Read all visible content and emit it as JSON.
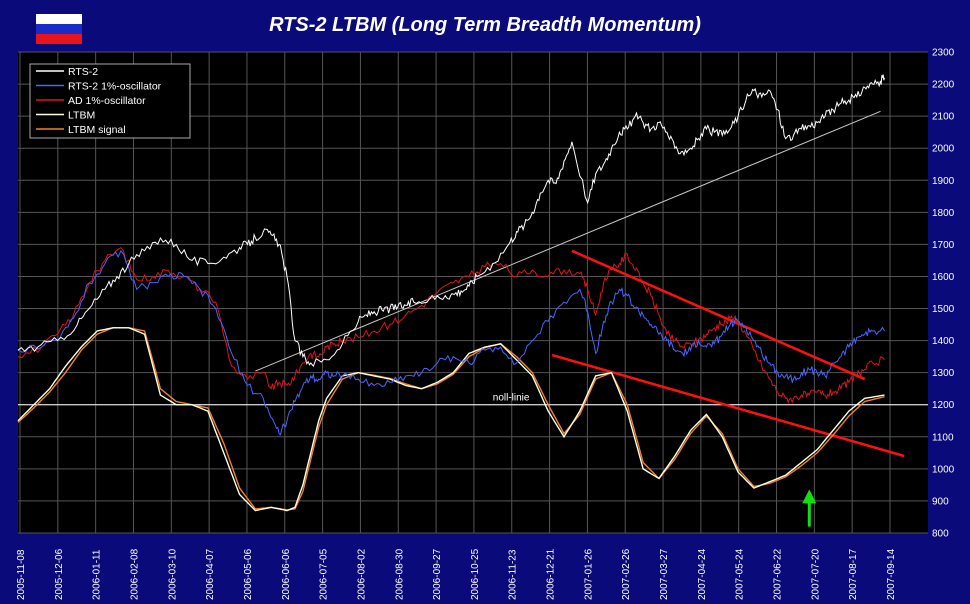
{
  "title": "RTS-2 LTBM (Long Term Breadth Momentum)",
  "flag": {
    "colors": [
      "#ffffff",
      "#1a2cc8",
      "#e8141c"
    ]
  },
  "chart_data": {
    "type": "line",
    "title": "RTS-2 LTBM (Long Term Breadth Momentum)",
    "ylim": [
      800,
      2300
    ],
    "y_ticks": [
      800,
      900,
      1000,
      1100,
      1200,
      1300,
      1400,
      1500,
      1600,
      1700,
      1800,
      1900,
      2000,
      2100,
      2200,
      2300
    ],
    "x_ticks": [
      "2005-11-08",
      "2005-12-06",
      "2006-01-11",
      "2006-02-08",
      "2006-03-10",
      "2006-04-07",
      "2006-05-06",
      "2006-06-06",
      "2006-07-05",
      "2006-08-02",
      "2006-08-30",
      "2006-09-27",
      "2006-10-25",
      "2006-11-23",
      "2006-12-21",
      "2007-01-26",
      "2007-02-26",
      "2007-03-27",
      "2007-04-24",
      "2007-05-24",
      "2007-06-22",
      "2007-07-20",
      "2007-08-17",
      "2007-09-14"
    ],
    "grid": true,
    "legend_position": "top-left",
    "colors": {
      "background": "#000000",
      "frame": "#0a0a7a",
      "grid": "#555555",
      "rts2": "#ffffff",
      "rts2_osc": "#4a64ff",
      "ad_osc": "#e0141c",
      "ltbm": "#ffffe0",
      "ltbm_signal": "#f08030",
      "trend_red": "#ff1010",
      "trend_grey": "#c8c8c8",
      "zero_line": "#ffffff",
      "arrow": "#10e010"
    },
    "series": [
      {
        "name": "RTS-2",
        "color": "#ffffff",
        "x": [
          0,
          5,
          10,
          15,
          18,
          22,
          25,
          28,
          32,
          36,
          40,
          44,
          48,
          52,
          56,
          58,
          60,
          62,
          64,
          66,
          68,
          70,
          72,
          74,
          78,
          82,
          86,
          88,
          90,
          92,
          94,
          96,
          98,
          100,
          104,
          108,
          110,
          112,
          114,
          116,
          120,
          124,
          126,
          128,
          130,
          132,
          134,
          136,
          138,
          140,
          144,
          146,
          148,
          150,
          152,
          154,
          156,
          158,
          160,
          162,
          164,
          166,
          168,
          170,
          172,
          174,
          176,
          178,
          180,
          182,
          184,
          186,
          188,
          190,
          192,
          194,
          196,
          198,
          200,
          202,
          204,
          206,
          208,
          210,
          212,
          214,
          216,
          218,
          219
        ],
        "y": [
          1370,
          1380,
          1400,
          1450,
          1500,
          1560,
          1600,
          1640,
          1680,
          1720,
          1700,
          1650,
          1640,
          1660,
          1690,
          1700,
          1720,
          1740,
          1730,
          1700,
          1600,
          1400,
          1350,
          1330,
          1340,
          1390,
          1460,
          1480,
          1490,
          1495,
          1500,
          1505,
          1510,
          1520,
          1530,
          1540,
          1545,
          1555,
          1570,
          1600,
          1640,
          1700,
          1740,
          1760,
          1800,
          1860,
          1900,
          1890,
          1960,
          2020,
          1830,
          1920,
          1950,
          2000,
          2050,
          2060,
          2100,
          2080,
          2060,
          2080,
          2050,
          2000,
          1990,
          2000,
          2030,
          2060,
          2050,
          2040,
          2060,
          2100,
          2150,
          2180,
          2160,
          2180,
          2120,
          2030,
          2040,
          2060,
          2070,
          2080,
          2100,
          2120,
          2140,
          2150,
          2160,
          2190,
          2200,
          2210,
          2220
        ]
      },
      {
        "name": "RTS-2 1%-oscillator",
        "color": "#4a64ff",
        "x": [
          0,
          6,
          10,
          14,
          18,
          22,
          26,
          30,
          34,
          38,
          42,
          46,
          50,
          54,
          58,
          62,
          64,
          66,
          68,
          70,
          72,
          74,
          76,
          78,
          80,
          82,
          86,
          90,
          94,
          98,
          102,
          106,
          110,
          114,
          118,
          122,
          126,
          130,
          134,
          138,
          142,
          144,
          146,
          148,
          150,
          152,
          154,
          156,
          158,
          160,
          162,
          164,
          166,
          168,
          170,
          172,
          174,
          176,
          178,
          180,
          182,
          184,
          186,
          188,
          190,
          192,
          194,
          196,
          198,
          200,
          202,
          204,
          206,
          208,
          210,
          212,
          214,
          216,
          219
        ],
        "y": [
          1370,
          1380,
          1400,
          1470,
          1580,
          1640,
          1680,
          1560,
          1580,
          1600,
          1600,
          1560,
          1500,
          1360,
          1260,
          1220,
          1160,
          1110,
          1150,
          1210,
          1260,
          1290,
          1280,
          1300,
          1290,
          1290,
          1280,
          1260,
          1270,
          1290,
          1300,
          1330,
          1350,
          1330,
          1370,
          1380,
          1330,
          1400,
          1460,
          1520,
          1560,
          1490,
          1360,
          1460,
          1520,
          1560,
          1540,
          1500,
          1480,
          1450,
          1420,
          1400,
          1370,
          1360,
          1370,
          1400,
          1380,
          1390,
          1420,
          1450,
          1460,
          1440,
          1400,
          1360,
          1330,
          1300,
          1290,
          1280,
          1300,
          1310,
          1300,
          1290,
          1330,
          1350,
          1380,
          1410,
          1420,
          1430,
          1430
        ]
      },
      {
        "name": "AD 1%-oscillator",
        "color": "#e0141c",
        "x": [
          0,
          6,
          10,
          14,
          18,
          22,
          26,
          30,
          34,
          38,
          42,
          46,
          50,
          54,
          58,
          62,
          64,
          66,
          68,
          70,
          72,
          74,
          76,
          78,
          80,
          82,
          86,
          90,
          94,
          98,
          102,
          106,
          110,
          114,
          118,
          122,
          126,
          130,
          134,
          138,
          142,
          144,
          146,
          148,
          150,
          152,
          154,
          156,
          158,
          160,
          162,
          164,
          166,
          168,
          170,
          172,
          174,
          176,
          178,
          180,
          182,
          184,
          186,
          188,
          190,
          192,
          194,
          196,
          198,
          200,
          202,
          204,
          206,
          208,
          210,
          212,
          214,
          216,
          219
        ],
        "y": [
          1350,
          1380,
          1420,
          1480,
          1580,
          1650,
          1690,
          1590,
          1600,
          1620,
          1600,
          1560,
          1520,
          1320,
          1280,
          1300,
          1250,
          1270,
          1260,
          1290,
          1330,
          1360,
          1350,
          1380,
          1390,
          1400,
          1410,
          1430,
          1450,
          1480,
          1510,
          1550,
          1580,
          1600,
          1630,
          1640,
          1600,
          1620,
          1600,
          1620,
          1610,
          1560,
          1480,
          1580,
          1620,
          1640,
          1670,
          1620,
          1580,
          1540,
          1480,
          1420,
          1400,
          1380,
          1390,
          1400,
          1420,
          1440,
          1450,
          1470,
          1460,
          1420,
          1370,
          1320,
          1280,
          1240,
          1220,
          1220,
          1230,
          1230,
          1240,
          1230,
          1240,
          1250,
          1270,
          1290,
          1310,
          1330,
          1340
        ]
      },
      {
        "name": "LTBM",
        "color": "#ffffe0",
        "x": [
          0,
          4,
          8,
          12,
          16,
          20,
          24,
          28,
          32,
          36,
          40,
          44,
          48,
          52,
          56,
          60,
          64,
          68,
          70,
          72,
          74,
          76,
          78,
          82,
          86,
          90,
          94,
          98,
          102,
          106,
          110,
          114,
          118,
          122,
          126,
          130,
          134,
          138,
          142,
          146,
          150,
          154,
          158,
          162,
          166,
          170,
          174,
          178,
          182,
          186,
          190,
          194,
          198,
          202,
          206,
          210,
          214,
          219
        ],
        "y": [
          1150,
          1200,
          1250,
          1320,
          1380,
          1430,
          1440,
          1440,
          1420,
          1230,
          1200,
          1200,
          1180,
          1050,
          920,
          870,
          880,
          870,
          880,
          950,
          1050,
          1150,
          1220,
          1290,
          1300,
          1290,
          1280,
          1260,
          1250,
          1270,
          1300,
          1360,
          1380,
          1390,
          1340,
          1290,
          1180,
          1100,
          1180,
          1290,
          1300,
          1180,
          1000,
          970,
          1040,
          1120,
          1170,
          1100,
          990,
          940,
          960,
          980,
          1020,
          1060,
          1120,
          1180,
          1220,
          1230
        ]
      },
      {
        "name": "LTBM signal",
        "color": "#f08030",
        "x": [
          0,
          4,
          8,
          12,
          16,
          20,
          24,
          28,
          32,
          36,
          40,
          44,
          48,
          52,
          56,
          60,
          64,
          68,
          70,
          72,
          74,
          76,
          78,
          82,
          86,
          90,
          94,
          98,
          102,
          106,
          110,
          114,
          118,
          122,
          126,
          130,
          134,
          138,
          142,
          146,
          150,
          154,
          158,
          162,
          166,
          170,
          174,
          178,
          182,
          186,
          190,
          194,
          198,
          202,
          206,
          210,
          214,
          219
        ],
        "y": [
          1145,
          1190,
          1240,
          1300,
          1370,
          1420,
          1440,
          1440,
          1430,
          1250,
          1210,
          1200,
          1190,
          1080,
          940,
          875,
          880,
          872,
          875,
          930,
          1030,
          1130,
          1200,
          1280,
          1300,
          1292,
          1282,
          1265,
          1250,
          1265,
          1295,
          1350,
          1378,
          1390,
          1350,
          1300,
          1200,
          1110,
          1170,
          1280,
          1300,
          1200,
          1020,
          970,
          1030,
          1110,
          1165,
          1110,
          1000,
          945,
          955,
          975,
          1010,
          1050,
          1105,
          1165,
          1210,
          1225
        ]
      }
    ],
    "trendlines": [
      {
        "color": "#c8c8c8",
        "x": [
          60,
          218
        ],
        "y": [
          1305,
          2115
        ]
      },
      {
        "color": "#ff1010",
        "x": [
          140,
          214
        ],
        "y": [
          1680,
          1280
        ]
      },
      {
        "color": "#ff1010",
        "x": [
          135,
          224
        ],
        "y": [
          1355,
          1040
        ]
      }
    ],
    "zero_line": {
      "y": 1200,
      "label": "noll-linie",
      "label_x": 120
    },
    "arrow": {
      "x": 200,
      "y_tip": 930,
      "y_tail": 820
    }
  }
}
